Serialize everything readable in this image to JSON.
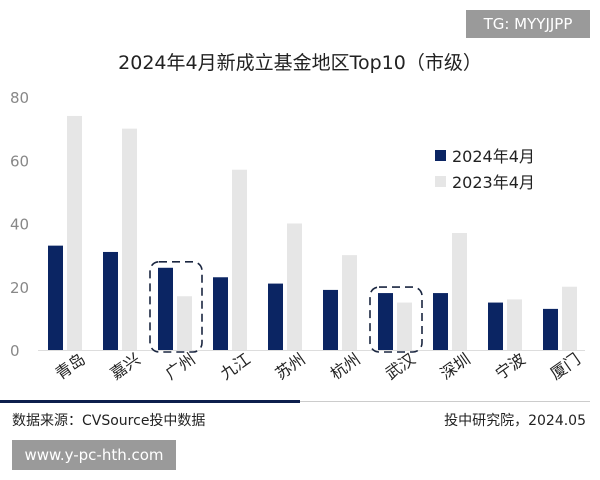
{
  "watermark_top": "TG: MYYJJPP",
  "watermark_bottom": "www.y-pc-hth.com",
  "source": "数据来源：CVSource投中数据",
  "publisher": "投中研究院，2024.05",
  "chart_data": {
    "type": "bar",
    "title": "2024年4月新成立基金地区Top10（市级）",
    "categories": [
      "青岛",
      "嘉兴",
      "广州",
      "九江",
      "苏州",
      "杭州",
      "武汉",
      "深圳",
      "宁波",
      "厦门"
    ],
    "series": [
      {
        "name": "2024年4月",
        "color": "#0b2563",
        "values": [
          33,
          31,
          26,
          23,
          21,
          19,
          18,
          18,
          15,
          13
        ]
      },
      {
        "name": "2023年4月",
        "color": "#e6e6e6",
        "values": [
          74,
          70,
          17,
          57,
          40,
          30,
          15,
          37,
          16,
          20
        ]
      }
    ],
    "ylim": [
      0,
      80
    ],
    "yticks": [
      0,
      20,
      40,
      60,
      80
    ],
    "grid": false,
    "legend": "right",
    "highlighted": [
      "广州",
      "武汉"
    ]
  }
}
